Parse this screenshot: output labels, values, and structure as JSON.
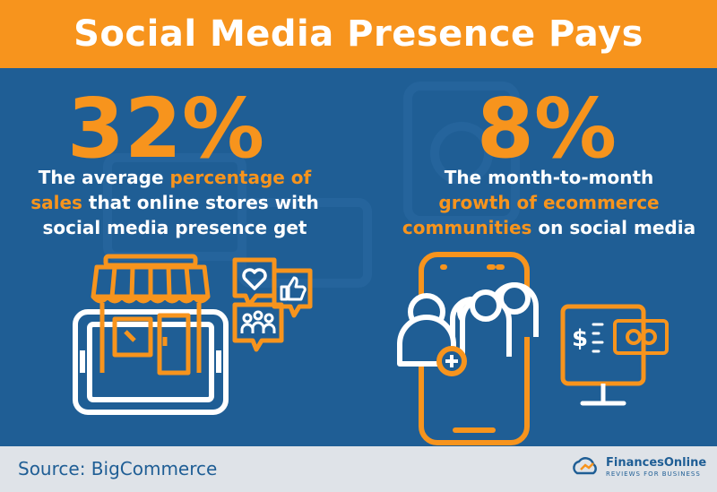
{
  "title": "Social Media Presence Pays",
  "left": {
    "stat": "32%",
    "desc": [
      {
        "text": "The average ",
        "hl": false
      },
      {
        "text": "percentage of",
        "hl": true
      },
      {
        "text": "\n",
        "hl": false
      },
      {
        "text": "sales",
        "hl": true
      },
      {
        "text": " that online stores with",
        "hl": false
      },
      {
        "text": "\n",
        "hl": false
      },
      {
        "text": "social media presence get",
        "hl": false
      }
    ]
  },
  "right": {
    "stat": "8%",
    "desc": [
      {
        "text": "The month-to-month",
        "hl": false
      },
      {
        "text": "\n",
        "hl": false
      },
      {
        "text": "growth of ecommerce",
        "hl": true
      },
      {
        "text": "\n",
        "hl": false
      },
      {
        "text": "communities",
        "hl": true
      },
      {
        "text": " on social media",
        "hl": false
      }
    ]
  },
  "footer": {
    "source": "Source: BigCommerce",
    "brand_name": "FinancesOnline",
    "brand_tag": "REVIEWS FOR BUSINESS"
  },
  "colors": {
    "orange": "#f7941d",
    "blue": "#1f5e95",
    "white": "#ffffff",
    "footer_bg": "#dfe3e8"
  },
  "icons": [
    "storefront-icon",
    "tablet-icon",
    "heart-bubble-icon",
    "like-bubble-icon",
    "group-bubble-icon",
    "phone-icon",
    "add-user-icon",
    "group-icon",
    "money-monitor-icon",
    "cloud-logo-icon"
  ]
}
